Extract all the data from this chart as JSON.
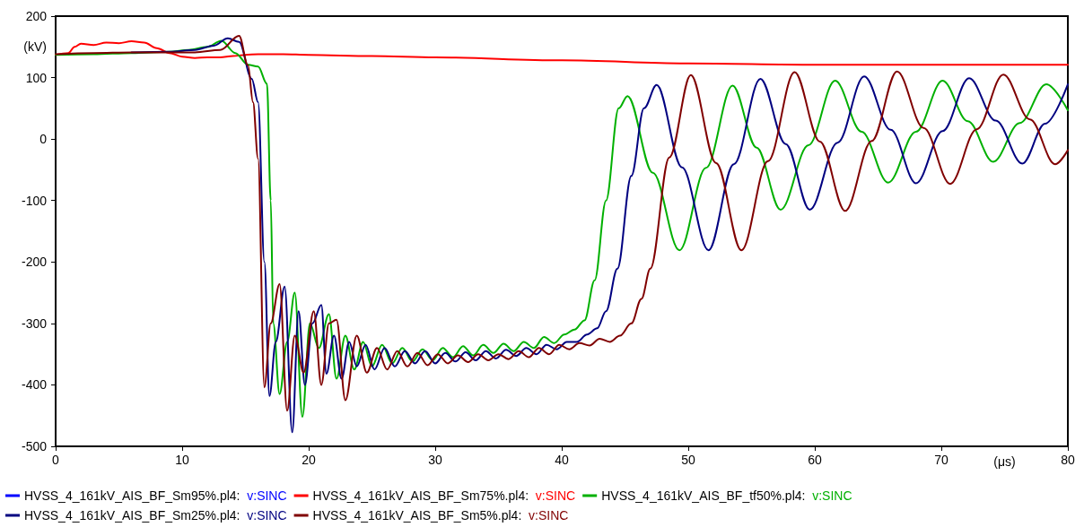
{
  "chart_data": {
    "type": "line",
    "xlabel": "(μs)",
    "ylabel": "(kV)",
    "xlim": [
      0,
      80
    ],
    "xticks": [
      0,
      10,
      20,
      30,
      40,
      50,
      60,
      70,
      80
    ],
    "ylim": [
      -500,
      200
    ],
    "yticks": [
      -500,
      -400,
      -300,
      -200,
      -100,
      0,
      100,
      200
    ],
    "grid": false,
    "legend": "bottom",
    "marker": "none",
    "line_style": "solid",
    "series": [
      {
        "name": "HVSS_4_161kV_AIS_BF_Sm95%.pl4: v:SINC",
        "color": "#0000ff"
      },
      {
        "name": "HVSS_4_161kV_AIS_BF_Sm75%.pl4: v:SINC",
        "color": "#ff0000",
        "x": [
          0,
          1,
          1.5,
          2,
          3,
          4,
          5,
          6,
          7,
          8,
          9,
          10,
          11,
          12,
          13,
          14,
          15,
          16,
          18,
          20,
          25,
          30,
          40,
          50,
          60,
          70,
          80
        ],
        "values": [
          137,
          140,
          150,
          155,
          153,
          157,
          156,
          159,
          157,
          148,
          140,
          134,
          132,
          133,
          133,
          135,
          137,
          138,
          138,
          137,
          135,
          133,
          128,
          123,
          121,
          121,
          121
        ]
      },
      {
        "name": "HVSS_4_161kV_AIS_BF_tf50%.pl4: v:SINC",
        "color": "#00b000",
        "x": [
          0,
          3,
          6,
          9,
          10.5,
          12,
          13.1,
          14.2,
          15.2,
          16.0,
          16.7,
          17.0,
          17.2,
          17.7,
          18.3,
          18.9,
          19.5,
          20.1,
          20.8,
          21.6,
          22.2,
          22.9,
          23.6,
          24.3,
          25.0,
          25.8,
          26.6,
          27.4,
          28.2,
          29.0,
          29.8,
          30.6,
          31.4,
          32.2,
          33.0,
          33.8,
          34.6,
          35.4,
          36.2,
          37.0,
          37.8,
          38.6,
          39.4,
          40.2,
          41.0,
          41.8,
          42.6,
          43.5,
          44.5,
          45.2,
          47.2,
          49.3,
          51.4,
          53.5,
          55.4,
          57.3,
          59.5,
          61.6,
          63.7,
          65.8,
          68.0,
          70.1,
          72.1,
          74.1,
          76.2,
          78.3,
          80
        ],
        "values": [
          137,
          138,
          140,
          142,
          145,
          150,
          160,
          140,
          121,
          118,
          90,
          -100,
          -300,
          -415,
          -330,
          -250,
          -452,
          -300,
          -340,
          -285,
          -390,
          -320,
          -375,
          -330,
          -370,
          -335,
          -365,
          -340,
          -362,
          -342,
          -360,
          -340,
          -355,
          -337,
          -352,
          -335,
          -348,
          -333,
          -345,
          -330,
          -340,
          -322,
          -332,
          -318,
          -310,
          -295,
          -230,
          -100,
          50,
          70,
          -55,
          -181,
          -47,
          87,
          -14,
          -115,
          -10,
          95,
          12,
          -71,
          12,
          95,
          29,
          -37,
          26,
          89,
          47
        ]
      },
      {
        "name": "HVSS_4_161kV_AIS_BF_Sm25%.pl4: v:SINC",
        "color": "#000080",
        "x": [
          6,
          9,
          11,
          12.5,
          13.6,
          14.5,
          15.5,
          16.0,
          16.5,
          16.9,
          17.4,
          18.1,
          18.7,
          19.2,
          19.7,
          20.3,
          21.0,
          21.4,
          22.0,
          22.6,
          23.2,
          23.8,
          24.5,
          25.2,
          26.0,
          26.8,
          27.6,
          28.4,
          29.2,
          30.0,
          30.8,
          31.6,
          32.4,
          33.2,
          34.0,
          34.8,
          35.6,
          36.4,
          37.2,
          38.0,
          38.8,
          39.6,
          40.4,
          41.2,
          42.0,
          42.8,
          43.5,
          44.4,
          45.5,
          46.5,
          47.5,
          49.5,
          51.6,
          53.6,
          55.7,
          57.7,
          59.6,
          61.8,
          63.9,
          66.0,
          68.0,
          70.1,
          72.2,
          74.3,
          76.4,
          78.2,
          80
        ],
        "values": [
          141,
          142,
          145,
          152,
          164,
          158,
          98,
          60,
          -200,
          -418,
          -330,
          -240,
          -477,
          -280,
          -400,
          -300,
          -270,
          -382,
          -320,
          -390,
          -330,
          -370,
          -335,
          -375,
          -340,
          -370,
          -345,
          -365,
          -345,
          -365,
          -348,
          -362,
          -347,
          -360,
          -345,
          -357,
          -343,
          -353,
          -340,
          -350,
          -335,
          -342,
          -330,
          -330,
          -318,
          -308,
          -280,
          -211,
          -60,
          50,
          88,
          -46,
          -181,
          -41,
          98,
          -8,
          -115,
          -6,
          102,
          15,
          -72,
          13,
          99,
          30,
          -40,
          25,
          89
        ]
      },
      {
        "name": "HVSS_4_161kV_AIS_BF_Sm5%.pl4: v:SINC",
        "color": "#800000",
        "x": [
          0,
          3,
          6,
          9,
          11,
          13,
          14.5,
          15.2,
          15.6,
          16.0,
          16.5,
          17.0,
          17.7,
          18.3,
          18.9,
          19.6,
          20.4,
          21.0,
          21.6,
          22.2,
          22.9,
          23.8,
          24.6,
          25.4,
          26.2,
          27.0,
          27.8,
          28.6,
          29.4,
          30.2,
          31.0,
          31.8,
          32.6,
          33.4,
          34.2,
          35.0,
          35.8,
          36.6,
          37.4,
          38.2,
          39.0,
          39.8,
          40.6,
          41.4,
          42.2,
          43.0,
          43.8,
          44.6,
          45.5,
          46.3,
          47.0,
          48.5,
          50.2,
          52.2,
          54.2,
          56.3,
          58.4,
          60.4,
          62.4,
          64.5,
          66.5,
          68.6,
          70.7,
          72.8,
          74.9,
          77.0,
          79.0,
          80
        ],
        "values": [
          138,
          140,
          141,
          141,
          141,
          145,
          168,
          120,
          60,
          -32,
          -404,
          -300,
          -236,
          -442,
          -320,
          -380,
          -280,
          -400,
          -300,
          -294,
          -425,
          -320,
          -380,
          -340,
          -375,
          -345,
          -370,
          -348,
          -368,
          -350,
          -365,
          -352,
          -363,
          -350,
          -360,
          -350,
          -358,
          -345,
          -355,
          -340,
          -350,
          -335,
          -342,
          -332,
          -336,
          -325,
          -330,
          -320,
          -300,
          -260,
          -211,
          -30,
          104,
          -39,
          -181,
          -36,
          109,
          -4,
          -117,
          -3,
          110,
          18,
          -73,
          16,
          105,
          32,
          -41,
          -18
        ]
      }
    ]
  }
}
